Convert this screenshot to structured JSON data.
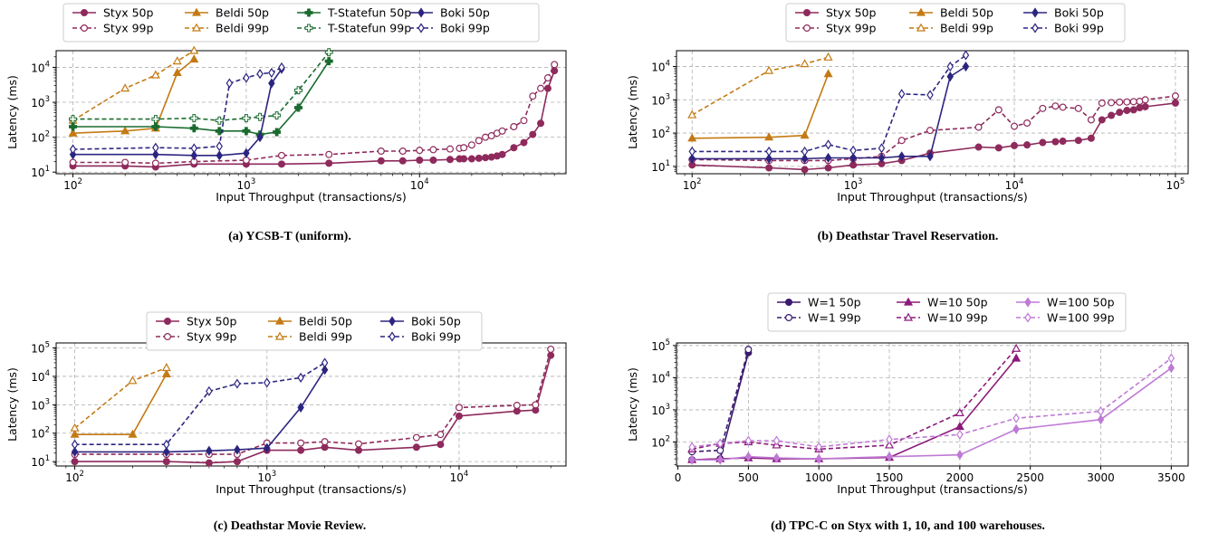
{
  "chart_data": [
    {
      "type": "line",
      "caption": "(a) YCSB-T (uniform).",
      "xlabel": "Input Throughput (transactions/s)",
      "ylabel": "Latency (ms)",
      "xscale": "log",
      "yscale": "log",
      "xlim": [
        80,
        70000
      ],
      "ylim": [
        9,
        30000
      ],
      "xticks": [
        {
          "v": 100,
          "label": "10^2"
        },
        {
          "v": 1000,
          "label": "10^3"
        },
        {
          "v": 10000,
          "label": "10^4"
        }
      ],
      "yticks": [
        {
          "v": 10,
          "label": "10^1"
        },
        {
          "v": 100,
          "label": "10^2"
        },
        {
          "v": 1000,
          "label": "10^3"
        },
        {
          "v": 10000,
          "label": "10^4"
        }
      ],
      "grid": true,
      "legend_position": "top",
      "series": [
        {
          "name": "Styx 50p",
          "system": "styx",
          "pct": "50p",
          "x": [
            100,
            200,
            300,
            500,
            1000,
            1600,
            3000,
            6000,
            8000,
            10000,
            12000,
            15000,
            17000,
            18000,
            20000,
            22000,
            24000,
            26000,
            28000,
            30000,
            35000,
            40000,
            45000,
            50000,
            55000,
            60000
          ],
          "y": [
            15,
            15,
            14,
            17,
            17,
            17,
            18,
            21,
            21,
            22,
            22,
            23,
            24,
            24,
            24,
            25,
            26,
            27,
            29,
            32,
            50,
            70,
            120,
            250,
            2500,
            8000
          ]
        },
        {
          "name": "Styx 99p",
          "system": "styx",
          "pct": "99p",
          "x": [
            100,
            200,
            300,
            500,
            1000,
            1600,
            3000,
            6000,
            8000,
            10000,
            12000,
            15000,
            17000,
            18000,
            20000,
            22000,
            24000,
            26000,
            28000,
            30000,
            35000,
            40000,
            45000,
            50000,
            55000,
            60000
          ],
          "y": [
            19,
            19,
            18,
            20,
            22,
            30,
            32,
            40,
            40,
            42,
            44,
            46,
            48,
            50,
            60,
            80,
            100,
            110,
            130,
            150,
            200,
            300,
            1500,
            2500,
            5000,
            12000
          ]
        },
        {
          "name": "Beldi 50p",
          "system": "beldi",
          "pct": "50p",
          "x": [
            100,
            200,
            300,
            400,
            500
          ],
          "y": [
            130,
            150,
            180,
            7000,
            17000
          ]
        },
        {
          "name": "Beldi 99p",
          "system": "beldi",
          "pct": "99p",
          "x": [
            100,
            200,
            300,
            400,
            500
          ],
          "y": [
            300,
            2500,
            6000,
            15000,
            30000
          ]
        },
        {
          "name": "T-Statefun 50p",
          "system": "tstatefun",
          "pct": "50p",
          "x": [
            100,
            300,
            500,
            700,
            1000,
            1200,
            1500,
            2000,
            3000
          ],
          "y": [
            200,
            200,
            180,
            150,
            150,
            120,
            140,
            700,
            15000
          ]
        },
        {
          "name": "T-Statefun 99p",
          "system": "tstatefun",
          "pct": "99p",
          "x": [
            100,
            300,
            500,
            700,
            1000,
            1200,
            1500,
            2000,
            3000
          ],
          "y": [
            330,
            330,
            350,
            300,
            350,
            380,
            420,
            2200,
            27000
          ]
        },
        {
          "name": "Boki 50p",
          "system": "boki",
          "pct": "50p",
          "x": [
            100,
            300,
            500,
            700,
            1000,
            1200,
            1400,
            1600
          ],
          "y": [
            32,
            32,
            30,
            30,
            35,
            100,
            3500,
            9000
          ]
        },
        {
          "name": "Boki 99p",
          "system": "boki",
          "pct": "99p",
          "x": [
            100,
            300,
            500,
            700,
            800,
            1000,
            1200,
            1400,
            1600
          ],
          "y": [
            45,
            50,
            48,
            55,
            3500,
            5000,
            6500,
            7000,
            10000
          ]
        }
      ]
    },
    {
      "type": "line",
      "caption": "(b) Deathstar Travel Reservation.",
      "xlabel": "Input Throughput (transactions/s)",
      "ylabel": "Latency (ms)",
      "xscale": "log",
      "yscale": "log",
      "xlim": [
        80,
        120000
      ],
      "ylim": [
        6,
        30000
      ],
      "xticks": [
        {
          "v": 100,
          "label": "10^2"
        },
        {
          "v": 1000,
          "label": "10^3"
        },
        {
          "v": 10000,
          "label": "10^4"
        },
        {
          "v": 100000,
          "label": "10^5"
        }
      ],
      "yticks": [
        {
          "v": 10,
          "label": "10^1"
        },
        {
          "v": 100,
          "label": "10^2"
        },
        {
          "v": 1000,
          "label": "10^3"
        },
        {
          "v": 10000,
          "label": "10^4"
        }
      ],
      "grid": true,
      "legend_position": "top",
      "series": [
        {
          "name": "Styx 50p",
          "system": "styx",
          "pct": "50p",
          "x": [
            100,
            300,
            500,
            700,
            1000,
            1500,
            2000,
            3000,
            6000,
            8000,
            10000,
            12000,
            15000,
            18000,
            20000,
            25000,
            30000,
            35000,
            40000,
            45000,
            50000,
            55000,
            60000,
            65000,
            100000
          ],
          "y": [
            11,
            9,
            8,
            9,
            11,
            12,
            15,
            25,
            38,
            36,
            42,
            44,
            52,
            55,
            57,
            60,
            70,
            250,
            340,
            420,
            480,
            500,
            580,
            620,
            800
          ]
        },
        {
          "name": "Styx 99p",
          "system": "styx",
          "pct": "99p",
          "x": [
            100,
            300,
            500,
            700,
            1000,
            1500,
            2000,
            3000,
            6000,
            8000,
            10000,
            12000,
            15000,
            18000,
            20000,
            25000,
            30000,
            35000,
            40000,
            45000,
            50000,
            55000,
            60000,
            65000,
            100000
          ],
          "y": [
            16,
            15,
            15,
            15,
            17,
            20,
            60,
            120,
            150,
            500,
            160,
            200,
            550,
            650,
            600,
            550,
            250,
            800,
            820,
            850,
            860,
            880,
            900,
            1000,
            1300
          ]
        },
        {
          "name": "Beldi 50p",
          "system": "beldi",
          "pct": "50p",
          "x": [
            100,
            300,
            500,
            700
          ],
          "y": [
            70,
            75,
            85,
            6000
          ]
        },
        {
          "name": "Beldi 99p",
          "system": "beldi",
          "pct": "99p",
          "x": [
            100,
            300,
            500,
            700
          ],
          "y": [
            350,
            7500,
            12000,
            19000
          ]
        },
        {
          "name": "Boki 50p",
          "system": "boki",
          "pct": "50p",
          "x": [
            100,
            300,
            500,
            700,
            1000,
            1500,
            2000,
            3000,
            4000,
            5000
          ],
          "y": [
            17,
            17,
            17,
            18,
            18,
            18,
            20,
            20,
            5000,
            10000
          ]
        },
        {
          "name": "Boki 99p",
          "system": "boki",
          "pct": "99p",
          "x": [
            100,
            300,
            500,
            700,
            1000,
            1500,
            2000,
            3000,
            4000,
            5000
          ],
          "y": [
            28,
            28,
            28,
            45,
            30,
            35,
            1500,
            1400,
            10000,
            22000
          ]
        }
      ]
    },
    {
      "type": "line",
      "caption": "(c) Deathstar Movie Review.",
      "xlabel": "Input Throughput (transactions/s)",
      "ylabel": "Latency (ms)",
      "xscale": "log",
      "yscale": "log",
      "xlim": [
        80,
        36000
      ],
      "ylim": [
        7,
        150000
      ],
      "xticks": [
        {
          "v": 100,
          "label": "10^2"
        },
        {
          "v": 1000,
          "label": "10^3"
        },
        {
          "v": 10000,
          "label": "10^4"
        }
      ],
      "yticks": [
        {
          "v": 10,
          "label": "10^1"
        },
        {
          "v": 100,
          "label": "10^2"
        },
        {
          "v": 1000,
          "label": "10^3"
        },
        {
          "v": 10000,
          "label": "10^4"
        },
        {
          "v": 100000,
          "label": "10^5"
        }
      ],
      "grid": true,
      "legend_position": "top",
      "series": [
        {
          "name": "Styx 50p",
          "system": "styx",
          "pct": "50p",
          "x": [
            100,
            300,
            500,
            700,
            1000,
            1500,
            2000,
            3000,
            6000,
            8000,
            10000,
            20000,
            25000,
            30000
          ],
          "y": [
            10,
            10,
            9,
            10,
            25,
            25,
            32,
            25,
            32,
            40,
            400,
            600,
            650,
            55000
          ]
        },
        {
          "name": "Styx 99p",
          "system": "styx",
          "pct": "99p",
          "x": [
            100,
            300,
            500,
            700,
            1000,
            1500,
            2000,
            3000,
            6000,
            8000,
            10000,
            20000,
            25000,
            30000
          ],
          "y": [
            18,
            18,
            18,
            18,
            45,
            45,
            50,
            42,
            70,
            90,
            800,
            950,
            1000,
            90000
          ]
        },
        {
          "name": "Beldi 50p",
          "system": "beldi",
          "pct": "50p",
          "x": [
            100,
            200,
            300
          ],
          "y": [
            90,
            90,
            12000
          ]
        },
        {
          "name": "Beldi 99p",
          "system": "beldi",
          "pct": "99p",
          "x": [
            100,
            200,
            300
          ],
          "y": [
            150,
            7000,
            20000
          ]
        },
        {
          "name": "Boki 50p",
          "system": "boki",
          "pct": "50p",
          "x": [
            100,
            300,
            500,
            700,
            1000,
            1500,
            2000
          ],
          "y": [
            22,
            22,
            24,
            26,
            30,
            800,
            17000
          ]
        },
        {
          "name": "Boki 99p",
          "system": "boki",
          "pct": "99p",
          "x": [
            100,
            300,
            500,
            700,
            1000,
            1500,
            2000
          ],
          "y": [
            40,
            40,
            3000,
            5500,
            6000,
            9000,
            30000
          ]
        }
      ]
    },
    {
      "type": "line",
      "caption": "(d) TPC-C on Styx with 1, 10, and 100 warehouses.",
      "xlabel": "Input Throughput (transactions/s)",
      "ylabel": "Latency (ms)",
      "xscale": "linear",
      "yscale": "log",
      "xlim": [
        -10,
        3620
      ],
      "ylim": [
        18,
        120000
      ],
      "xticks": [
        {
          "v": 0,
          "label": "0"
        },
        {
          "v": 500,
          "label": "500"
        },
        {
          "v": 1000,
          "label": "1000"
        },
        {
          "v": 1500,
          "label": "1500"
        },
        {
          "v": 2000,
          "label": "2000"
        },
        {
          "v": 2500,
          "label": "2500"
        },
        {
          "v": 3000,
          "label": "3000"
        },
        {
          "v": 3500,
          "label": "3500"
        }
      ],
      "yticks": [
        {
          "v": 100,
          "label": "10^2"
        },
        {
          "v": 1000,
          "label": "10^3"
        },
        {
          "v": 10000,
          "label": "10^4"
        },
        {
          "v": 100000,
          "label": "10^5"
        }
      ],
      "grid": true,
      "legend_position": "top",
      "series": [
        {
          "name": "W=1 50p",
          "system": "w1",
          "pct": "50p",
          "x": [
            100,
            300,
            500
          ],
          "y": [
            28,
            30,
            60000
          ]
        },
        {
          "name": "W=1 99p",
          "system": "w1",
          "pct": "99p",
          "x": [
            100,
            300,
            500
          ],
          "y": [
            50,
            55,
            75000
          ]
        },
        {
          "name": "W=10 50p",
          "system": "w10",
          "pct": "50p",
          "x": [
            100,
            300,
            500,
            700,
            1000,
            1500,
            2000,
            2400
          ],
          "y": [
            28,
            30,
            32,
            30,
            30,
            33,
            300,
            40000
          ]
        },
        {
          "name": "W=10 99p",
          "system": "w10",
          "pct": "99p",
          "x": [
            100,
            300,
            500,
            700,
            1000,
            1500,
            2000,
            2400
          ],
          "y": [
            60,
            90,
            100,
            80,
            60,
            80,
            800,
            80000
          ]
        },
        {
          "name": "W=100 50p",
          "system": "w100",
          "pct": "50p",
          "x": [
            100,
            300,
            500,
            700,
            1000,
            1500,
            2000,
            2400,
            3000,
            3500
          ],
          "y": [
            28,
            28,
            35,
            32,
            30,
            35,
            40,
            250,
            500,
            20000
          ]
        },
        {
          "name": "W=100 99p",
          "system": "w100",
          "pct": "99p",
          "x": [
            100,
            300,
            500,
            700,
            1000,
            1500,
            2000,
            2400,
            3000,
            3500
          ],
          "y": [
            70,
            90,
            110,
            110,
            70,
            120,
            170,
            550,
            900,
            40000
          ]
        }
      ]
    }
  ],
  "styles": {
    "styx": {
      "color": "#8e2a5c",
      "marker": "circle"
    },
    "beldi": {
      "color": "#c47a14",
      "marker": "triangle"
    },
    "tstatefun": {
      "color": "#1a6b2e",
      "marker": "plus"
    },
    "boki": {
      "color": "#2c2580",
      "marker": "diamond"
    },
    "w1": {
      "color": "#3a1a6e",
      "marker": "circle"
    },
    "w10": {
      "color": "#8c1a7a",
      "marker": "triangle"
    },
    "w100": {
      "color": "#bf7ad6",
      "marker": "diamond"
    }
  }
}
